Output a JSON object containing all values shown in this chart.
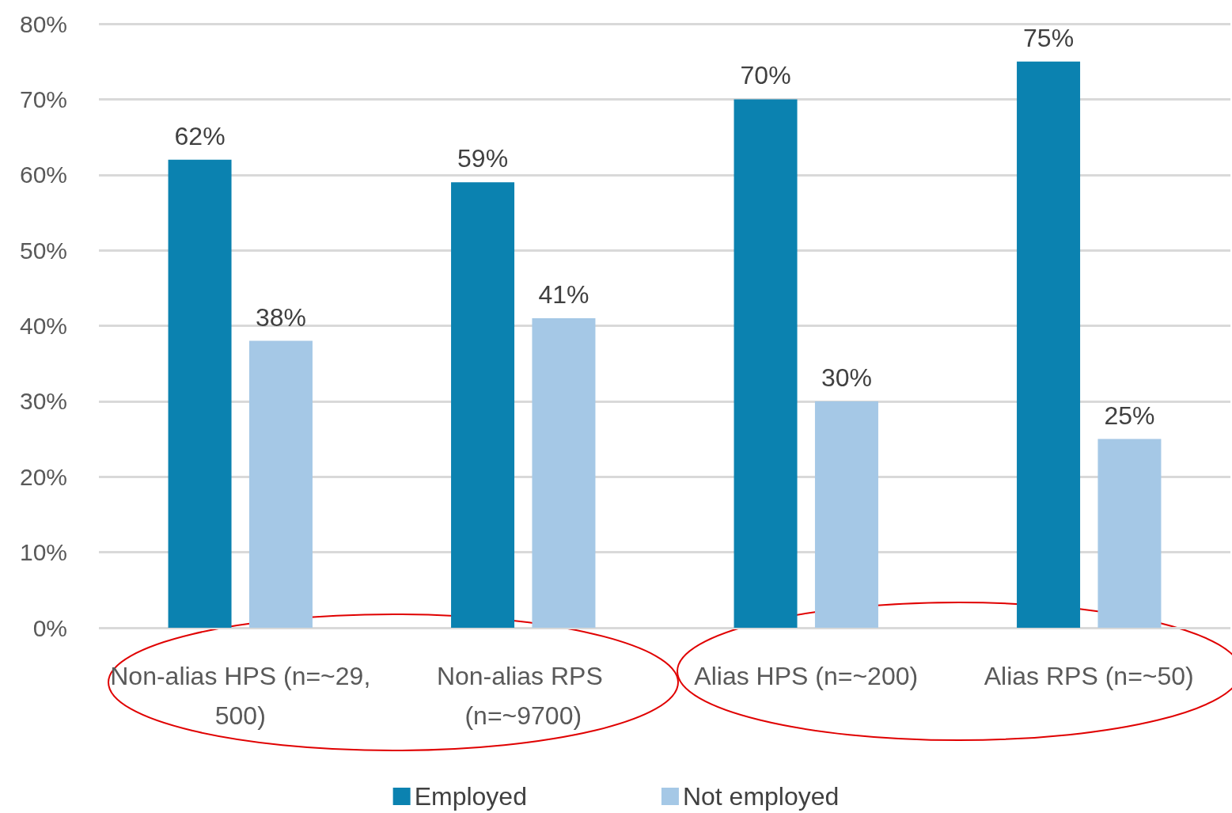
{
  "chart_data": {
    "type": "bar",
    "categories": [
      "Non-alias HPS (n=~29,500)",
      "Non-alias RPS (n=~9700)",
      "Alias HPS (n=~200)",
      "Alias RPS (n=~50)"
    ],
    "series": [
      {
        "name": "Employed",
        "color": "#0b82b0",
        "values": [
          62,
          59,
          70,
          75
        ],
        "value_labels": [
          "62%",
          "59%",
          "70%",
          "75%"
        ]
      },
      {
        "name": "Not employed",
        "color": "#a5c8e6",
        "values": [
          38,
          41,
          30,
          25
        ],
        "value_labels": [
          "38%",
          "41%",
          "30%",
          "25%"
        ]
      }
    ],
    "ylim": [
      0,
      80
    ],
    "yticks": [
      {
        "value": 0,
        "label": "0%"
      },
      {
        "value": 10,
        "label": "10%"
      },
      {
        "value": 20,
        "label": "20%"
      },
      {
        "value": 30,
        "label": "30%"
      },
      {
        "value": 40,
        "label": "40%"
      },
      {
        "value": 50,
        "label": "50%"
      },
      {
        "value": 60,
        "label": "60%"
      },
      {
        "value": 70,
        "label": "70%"
      },
      {
        "value": 80,
        "label": "80%"
      }
    ],
    "grid": "y",
    "legend": "bottom"
  }
}
